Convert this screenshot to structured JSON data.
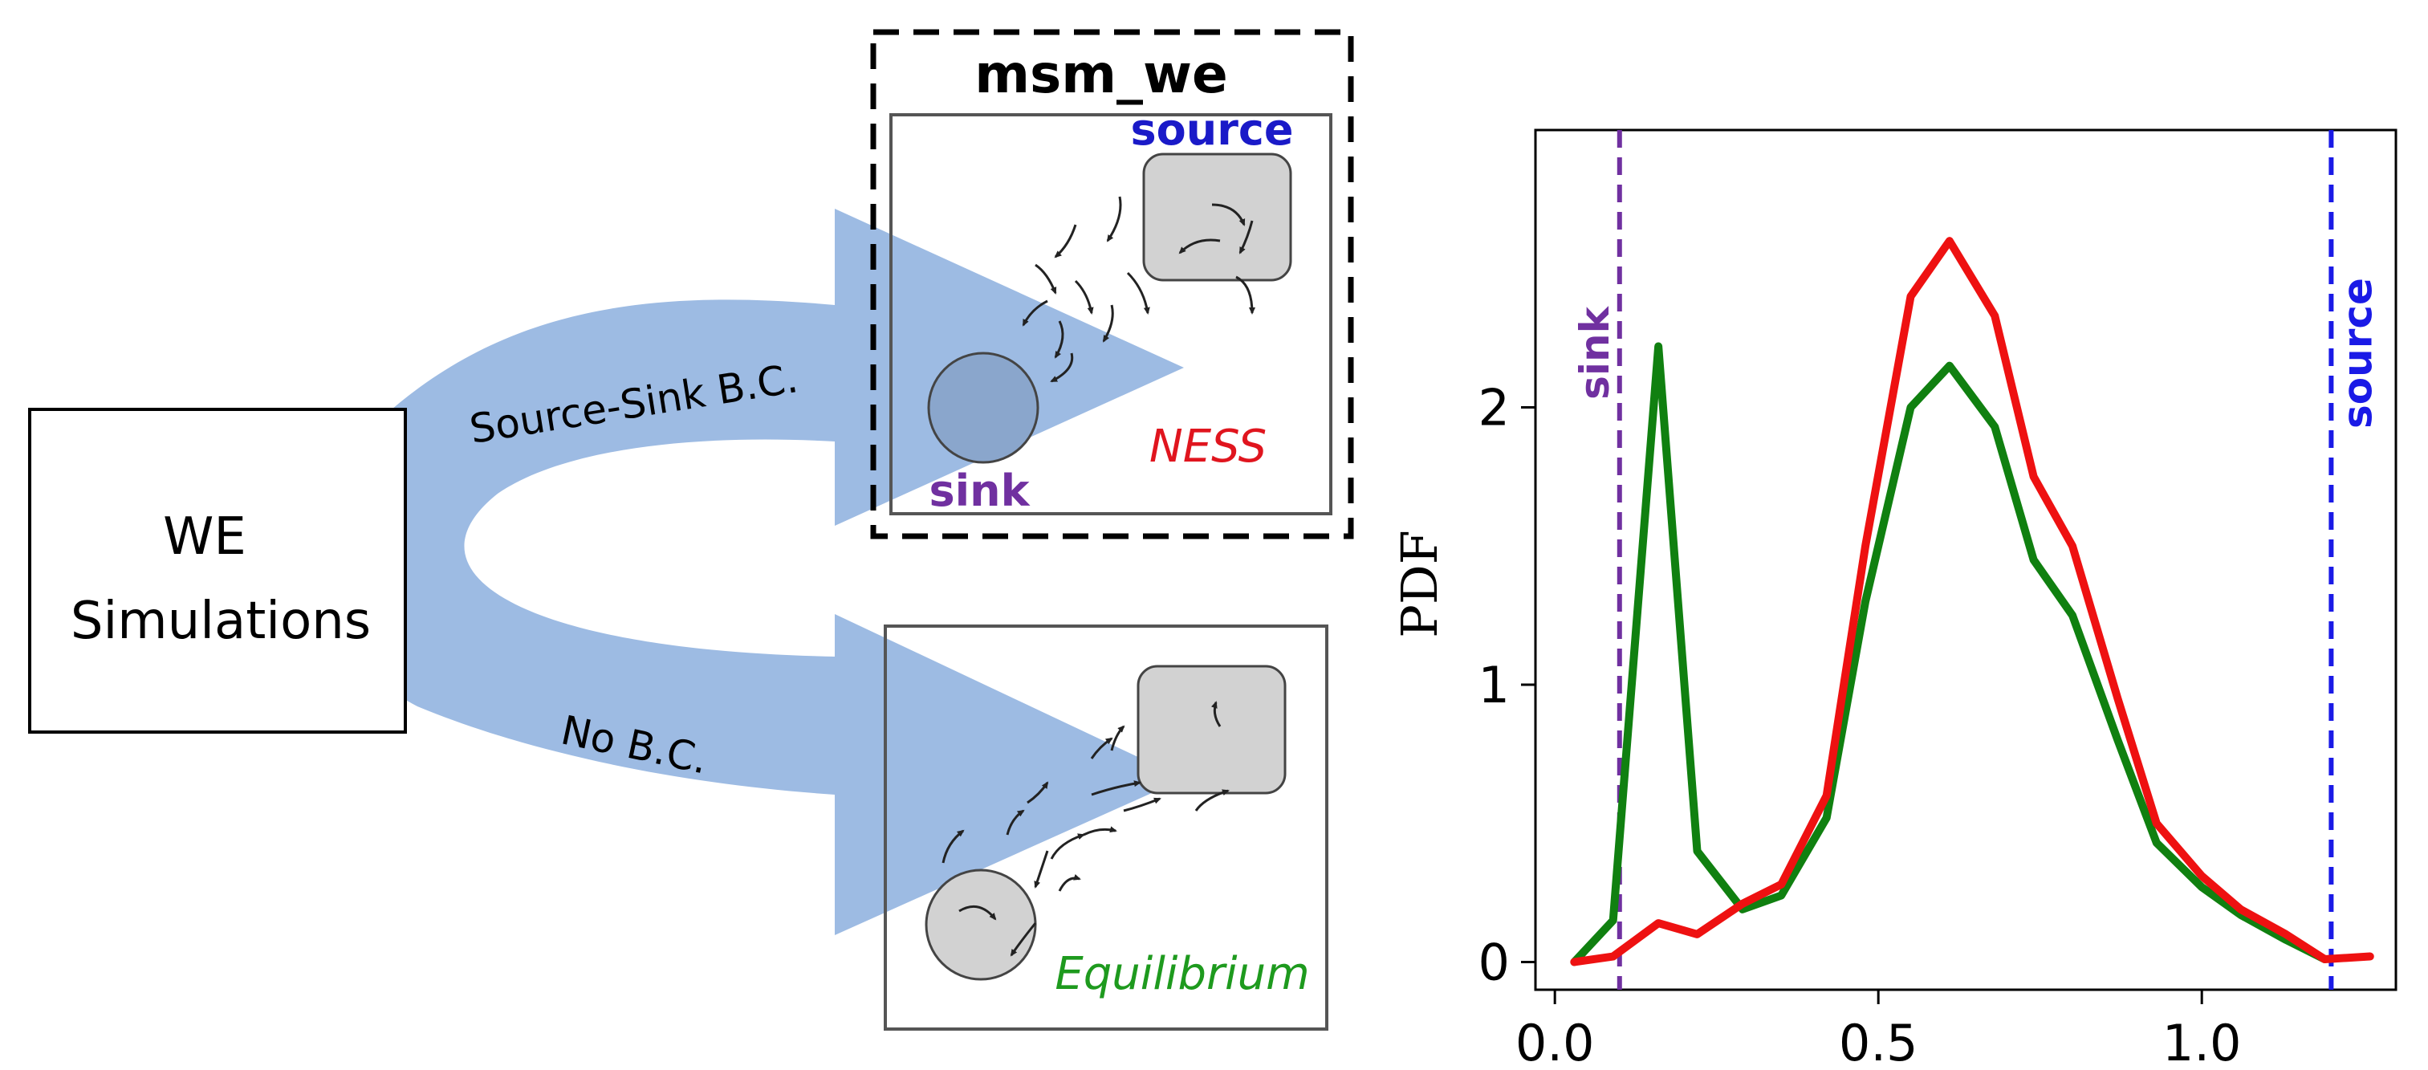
{
  "diagram": {
    "we_box": {
      "line1": "WE",
      "line2": "Simulations"
    },
    "top_arrow_label": "Source-Sink B.C.",
    "bottom_arrow_label": "No B.C.",
    "msm_title": "msm_we",
    "ness_panel": {
      "source": "source",
      "sink": "sink",
      "state": "NESS"
    },
    "eq_panel": {
      "state": "Equilibrium"
    },
    "colors": {
      "arrow": "#9dbbe3",
      "source": "#1a1ac8",
      "sink": "#7030a0",
      "ness": "#e0151e",
      "equilibrium": "#1e9a1e"
    }
  },
  "chart_data": {
    "type": "line",
    "ylabel": "PDF",
    "xlabel": "",
    "xlim": [
      -0.03,
      1.3
    ],
    "ylim": [
      -0.1,
      3.0
    ],
    "xticks": [
      0.0,
      0.5,
      1.0
    ],
    "xtick_labels": [
      "0.0",
      "0.5",
      "1.0"
    ],
    "yticks": [
      0,
      1,
      2
    ],
    "ytick_labels": [
      "0",
      "1",
      "2"
    ],
    "vlines": [
      {
        "x": 0.1,
        "label": "sink",
        "color": "#7030a0"
      },
      {
        "x": 1.2,
        "label": "source",
        "color": "#1a1ae6"
      }
    ],
    "series": [
      {
        "color": "#108010",
        "x": [
          0.03,
          0.09,
          0.16,
          0.22,
          0.29,
          0.35,
          0.42,
          0.48,
          0.55,
          0.61,
          0.68,
          0.74,
          0.8,
          0.87,
          0.93,
          1.0,
          1.06,
          1.13,
          1.19
        ],
        "y": [
          0.0,
          0.15,
          2.22,
          0.4,
          0.19,
          0.24,
          0.52,
          1.3,
          2.0,
          2.15,
          1.93,
          1.45,
          1.25,
          0.8,
          0.43,
          0.27,
          0.17,
          0.08,
          0.01
        ]
      },
      {
        "color": "#ee1111",
        "x": [
          0.03,
          0.09,
          0.16,
          0.22,
          0.29,
          0.35,
          0.42,
          0.48,
          0.55,
          0.61,
          0.68,
          0.74,
          0.8,
          0.87,
          0.93,
          1.0,
          1.06,
          1.13,
          1.19,
          1.26
        ],
        "y": [
          0.0,
          0.02,
          0.14,
          0.1,
          0.21,
          0.28,
          0.6,
          1.5,
          2.4,
          2.6,
          2.33,
          1.75,
          1.5,
          0.95,
          0.5,
          0.31,
          0.19,
          0.1,
          0.01,
          0.02
        ]
      }
    ]
  }
}
